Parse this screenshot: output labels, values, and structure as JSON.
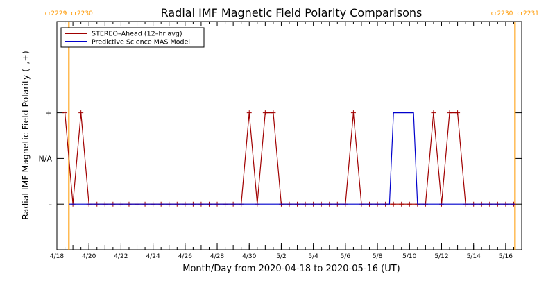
{
  "chart_data": {
    "type": "line",
    "title": "Radial IMF Magnetic Field Polarity Comparisons",
    "xlabel": "Month/Day from 2020-04-18 to 2020-05-16 (UT)",
    "ylabel": "Radial IMF Magnetic Field Polarity (–,+)",
    "x_unit": "day",
    "xlim": [
      "2020-04-18",
      "2020-05-17"
    ],
    "x_ticks": [
      {
        "date": "2020-04-18",
        "label": "4/18"
      },
      {
        "date": "2020-04-20",
        "label": "4/20"
      },
      {
        "date": "2020-04-22",
        "label": "4/22"
      },
      {
        "date": "2020-04-24",
        "label": "4/24"
      },
      {
        "date": "2020-04-26",
        "label": "4/26"
      },
      {
        "date": "2020-04-28",
        "label": "4/28"
      },
      {
        "date": "2020-04-30",
        "label": "4/30"
      },
      {
        "date": "2020-05-02",
        "label": "5/2"
      },
      {
        "date": "2020-05-04",
        "label": "5/4"
      },
      {
        "date": "2020-05-06",
        "label": "5/6"
      },
      {
        "date": "2020-05-08",
        "label": "5/8"
      },
      {
        "date": "2020-05-10",
        "label": "5/10"
      },
      {
        "date": "2020-05-12",
        "label": "5/12"
      },
      {
        "date": "2020-05-14",
        "label": "5/14"
      },
      {
        "date": "2020-05-16",
        "label": "5/16"
      }
    ],
    "y_categories": [
      {
        "value": -1,
        "label": "–"
      },
      {
        "value": 0,
        "label": "N/A"
      },
      {
        "value": 1,
        "label": "+"
      }
    ],
    "ylim": [
      -2,
      3
    ],
    "legend": {
      "position": "top-left",
      "entries": [
        {
          "label": "STEREO–Ahead (12–hr avg)",
          "color": "#a00000"
        },
        {
          "label": "Predictive Science MAS Model",
          "color": "#0000cc"
        }
      ]
    },
    "carrington_markers": [
      {
        "date": "2020-04-18T18:00",
        "label_left": "cr2229",
        "label_right": "cr2230",
        "color": "#ff9900"
      },
      {
        "date": "2020-05-16T14:00",
        "label_left": "cr2230",
        "label_right": "cr2231",
        "color": "#ff9900"
      }
    ],
    "series": [
      {
        "name": "STEREO–Ahead (12–hr avg)",
        "color": "#a00000",
        "marker": "plus",
        "points": [
          [
            "2020-04-18T12:00",
            1
          ],
          [
            "2020-04-19T00:00",
            -1
          ],
          [
            "2020-04-19T12:00",
            1
          ],
          [
            "2020-04-20T00:00",
            -1
          ],
          [
            "2020-04-20T12:00",
            -1
          ],
          [
            "2020-04-21T00:00",
            -1
          ],
          [
            "2020-04-21T12:00",
            -1
          ],
          [
            "2020-04-22T00:00",
            -1
          ],
          [
            "2020-04-22T12:00",
            -1
          ],
          [
            "2020-04-23T00:00",
            -1
          ],
          [
            "2020-04-23T12:00",
            -1
          ],
          [
            "2020-04-24T00:00",
            -1
          ],
          [
            "2020-04-24T12:00",
            -1
          ],
          [
            "2020-04-25T00:00",
            -1
          ],
          [
            "2020-04-25T12:00",
            -1
          ],
          [
            "2020-04-26T00:00",
            -1
          ],
          [
            "2020-04-26T12:00",
            -1
          ],
          [
            "2020-04-27T00:00",
            -1
          ],
          [
            "2020-04-27T12:00",
            -1
          ],
          [
            "2020-04-28T00:00",
            -1
          ],
          [
            "2020-04-28T12:00",
            -1
          ],
          [
            "2020-04-29T00:00",
            -1
          ],
          [
            "2020-04-29T12:00",
            -1
          ],
          [
            "2020-04-30T00:00",
            1
          ],
          [
            "2020-04-30T12:00",
            -1
          ],
          [
            "2020-05-01T00:00",
            1
          ],
          [
            "2020-05-01T12:00",
            1
          ],
          [
            "2020-05-02T00:00",
            -1
          ],
          [
            "2020-05-02T12:00",
            -1
          ],
          [
            "2020-05-03T00:00",
            -1
          ],
          [
            "2020-05-03T12:00",
            -1
          ],
          [
            "2020-05-04T00:00",
            -1
          ],
          [
            "2020-05-04T12:00",
            -1
          ],
          [
            "2020-05-05T00:00",
            -1
          ],
          [
            "2020-05-05T12:00",
            -1
          ],
          [
            "2020-05-06T00:00",
            -1
          ],
          [
            "2020-05-06T12:00",
            1
          ],
          [
            "2020-05-07T00:00",
            -1
          ],
          [
            "2020-05-07T12:00",
            -1
          ],
          [
            "2020-05-08T00:00",
            -1
          ],
          [
            "2020-05-08T12:00",
            -1
          ],
          [
            "2020-05-09T00:00",
            -1
          ],
          [
            "2020-05-09T12:00",
            -1
          ],
          [
            "2020-05-10T00:00",
            -1
          ],
          [
            "2020-05-10T12:00",
            -1
          ],
          [
            "2020-05-11T00:00",
            -1
          ],
          [
            "2020-05-11T12:00",
            1
          ],
          [
            "2020-05-12T00:00",
            -1
          ],
          [
            "2020-05-12T12:00",
            1
          ],
          [
            "2020-05-13T00:00",
            1
          ],
          [
            "2020-05-13T12:00",
            -1
          ],
          [
            "2020-05-14T00:00",
            -1
          ],
          [
            "2020-05-14T12:00",
            -1
          ],
          [
            "2020-05-15T00:00",
            -1
          ],
          [
            "2020-05-15T12:00",
            -1
          ],
          [
            "2020-05-16T00:00",
            -1
          ],
          [
            "2020-05-16T12:00",
            -1
          ]
        ]
      },
      {
        "name": "Predictive Science MAS Model",
        "color": "#0000cc",
        "marker": "none",
        "points": [
          [
            "2020-04-18T18:00",
            -1
          ],
          [
            "2020-05-08T18:00",
            -1
          ],
          [
            "2020-05-09T00:00",
            1
          ],
          [
            "2020-05-10T06:00",
            1
          ],
          [
            "2020-05-10T12:00",
            -1
          ],
          [
            "2020-05-16T14:00",
            -1
          ]
        ]
      }
    ]
  }
}
